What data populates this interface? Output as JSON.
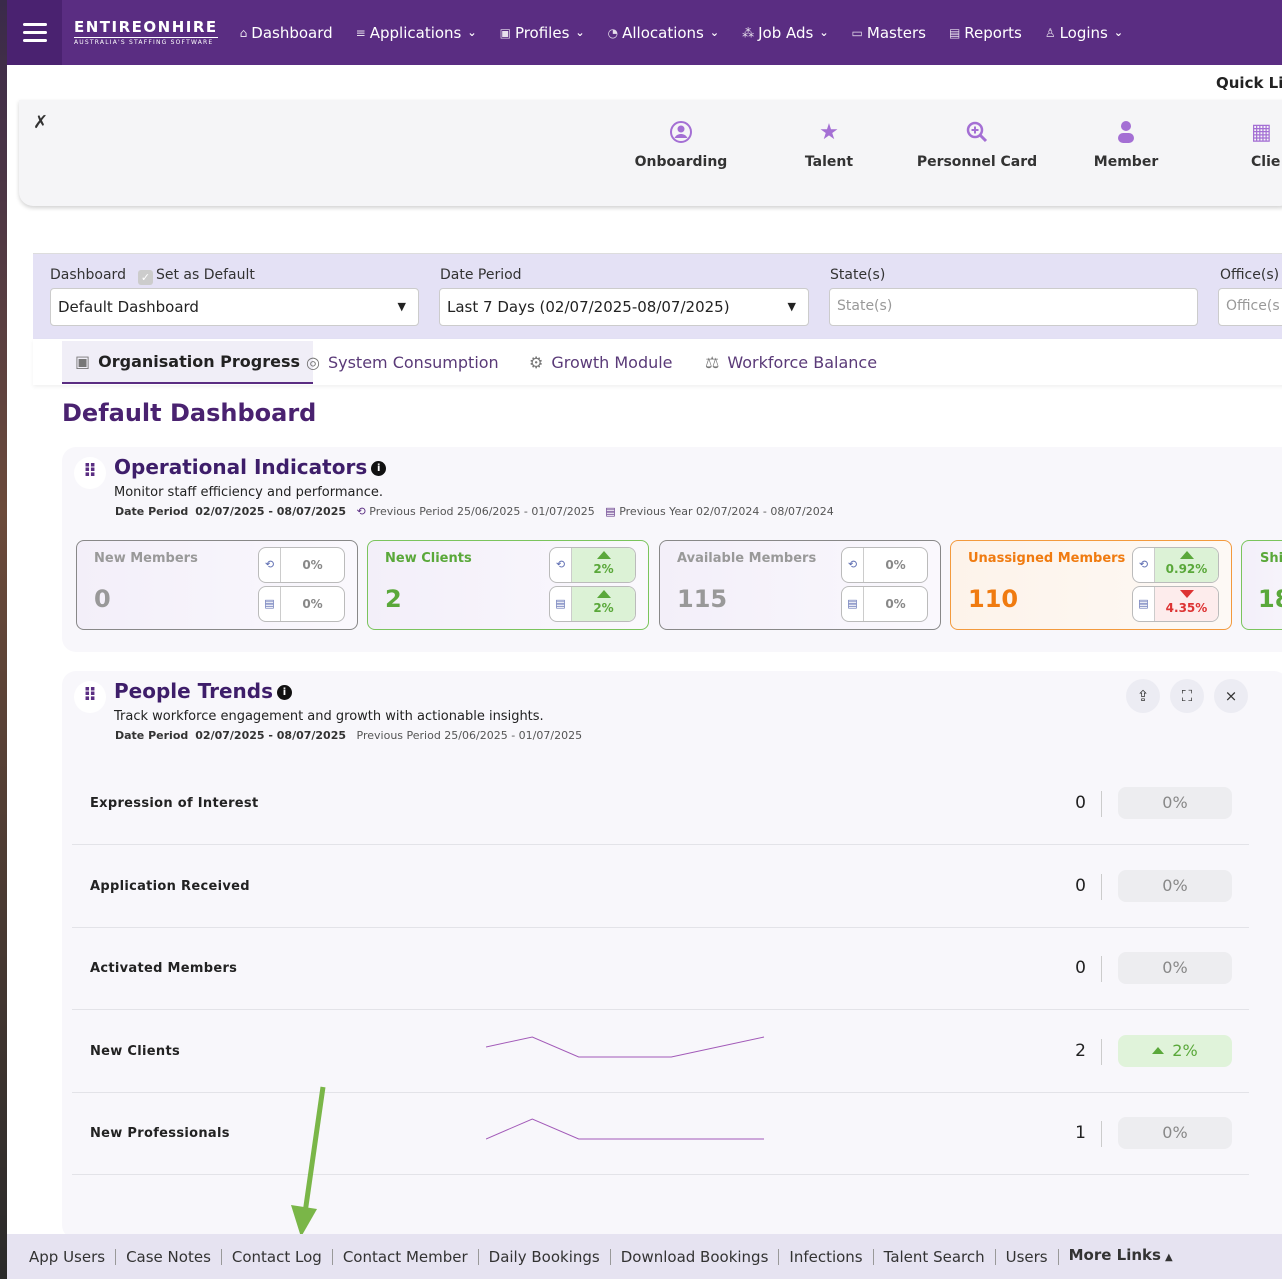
{
  "nav": {
    "logo_main": "ENTIREONHIRE",
    "logo_sub": "AUSTRALIA'S STAFFING SOFTWARE",
    "items": [
      {
        "label": "Dashboard",
        "icon": "home-icon",
        "dropdown": false
      },
      {
        "label": "Applications",
        "icon": "list-icon",
        "dropdown": true
      },
      {
        "label": "Profiles",
        "icon": "id-card-icon",
        "dropdown": true
      },
      {
        "label": "Allocations",
        "icon": "pie-icon",
        "dropdown": true
      },
      {
        "label": "Job Ads",
        "icon": "network-icon",
        "dropdown": true
      },
      {
        "label": "Masters",
        "icon": "folder-icon",
        "dropdown": false
      },
      {
        "label": "Reports",
        "icon": "report-icon",
        "dropdown": false
      },
      {
        "label": "Logins",
        "icon": "user-icon",
        "dropdown": true
      }
    ]
  },
  "quick_links": {
    "title": "Quick Li",
    "items": [
      {
        "label": "Onboarding",
        "icon": "user-circle-icon"
      },
      {
        "label": "Talent",
        "icon": "star-icon"
      },
      {
        "label": "Personnel Card",
        "icon": "search-plus-icon"
      },
      {
        "label": "Member",
        "icon": "person-icon"
      },
      {
        "label": "Clie",
        "icon": "building-icon"
      }
    ]
  },
  "filters": {
    "dashboard_label": "Dashboard",
    "set_default_label": "Set as Default",
    "dashboard_value": "Default Dashboard",
    "date_label": "Date Period",
    "date_value": "Last 7 Days (02/07/2025-08/07/2025)",
    "state_label": "State(s)",
    "state_placeholder": "State(s)",
    "office_label": "Office(s)",
    "office_placeholder": "Office(s"
  },
  "tabs": [
    {
      "label": "Organisation Progress",
      "active": true
    },
    {
      "label": "System Consumption",
      "active": false
    },
    {
      "label": "Growth Module",
      "active": false
    },
    {
      "label": "Workforce Balance",
      "active": false
    }
  ],
  "dashboard_title": "Default Dashboard",
  "operational": {
    "title": "Operational Indicators",
    "subtitle": "Monitor staff efficiency and performance.",
    "date_period_label": "Date Period",
    "date_period": "02/07/2025 - 08/07/2025",
    "previous_period": "Previous Period 25/06/2025 - 01/07/2025",
    "previous_year": "Previous Year 02/07/2024 - 08/07/2024",
    "kpis": [
      {
        "name": "New Members",
        "value": "0",
        "pp": "0%",
        "py": "0%",
        "pp_dir": "none",
        "py_dir": "none",
        "style": "gray"
      },
      {
        "name": "New Clients",
        "value": "2",
        "pp": "2%",
        "py": "2%",
        "pp_dir": "up",
        "py_dir": "up",
        "style": "green"
      },
      {
        "name": "Available Members",
        "value": "115",
        "pp": "0%",
        "py": "0%",
        "pp_dir": "none",
        "py_dir": "none",
        "style": "gray"
      },
      {
        "name": "Unassigned Members",
        "value": "110",
        "pp": "0.92%",
        "py": "4.35%",
        "pp_dir": "up",
        "py_dir": "down",
        "style": "orange"
      },
      {
        "name": "Shif",
        "value": "18",
        "pp": "",
        "py": "",
        "pp_dir": "none",
        "py_dir": "none",
        "style": "green"
      }
    ]
  },
  "people": {
    "title": "People Trends",
    "subtitle": "Track workforce engagement and growth with actionable insights.",
    "date_period_label": "Date Period",
    "date_period": "02/07/2025 - 08/07/2025",
    "previous_period": "Previous Period 25/06/2025 - 01/07/2025",
    "rows": [
      {
        "label": "Expression of Interest",
        "value": "0",
        "pct": "0%",
        "trend": "none",
        "spark": []
      },
      {
        "label": "Application Received",
        "value": "0",
        "pct": "0%",
        "trend": "none",
        "spark": []
      },
      {
        "label": "Activated Members",
        "value": "0",
        "pct": "0%",
        "trend": "none",
        "spark": []
      },
      {
        "label": "New Clients",
        "value": "2",
        "pct": "2%",
        "trend": "up",
        "spark": [
          1,
          2,
          0,
          0,
          0,
          1,
          2
        ]
      },
      {
        "label": "New Professionals",
        "value": "1",
        "pct": "0%",
        "trend": "none",
        "spark": [
          0,
          1,
          0,
          0,
          0,
          0,
          0
        ]
      }
    ]
  },
  "footer": {
    "links": [
      "App Users",
      "Case Notes",
      "Contact Log",
      "Contact Member",
      "Daily Bookings",
      "Download Bookings",
      "Infections",
      "Talent Search",
      "Users"
    ],
    "more": "More Links"
  },
  "colors": {
    "brand": "#5a2d82",
    "accent_green": "#5aa83a",
    "accent_orange": "#f07b10",
    "arrow": "#7ab648"
  }
}
